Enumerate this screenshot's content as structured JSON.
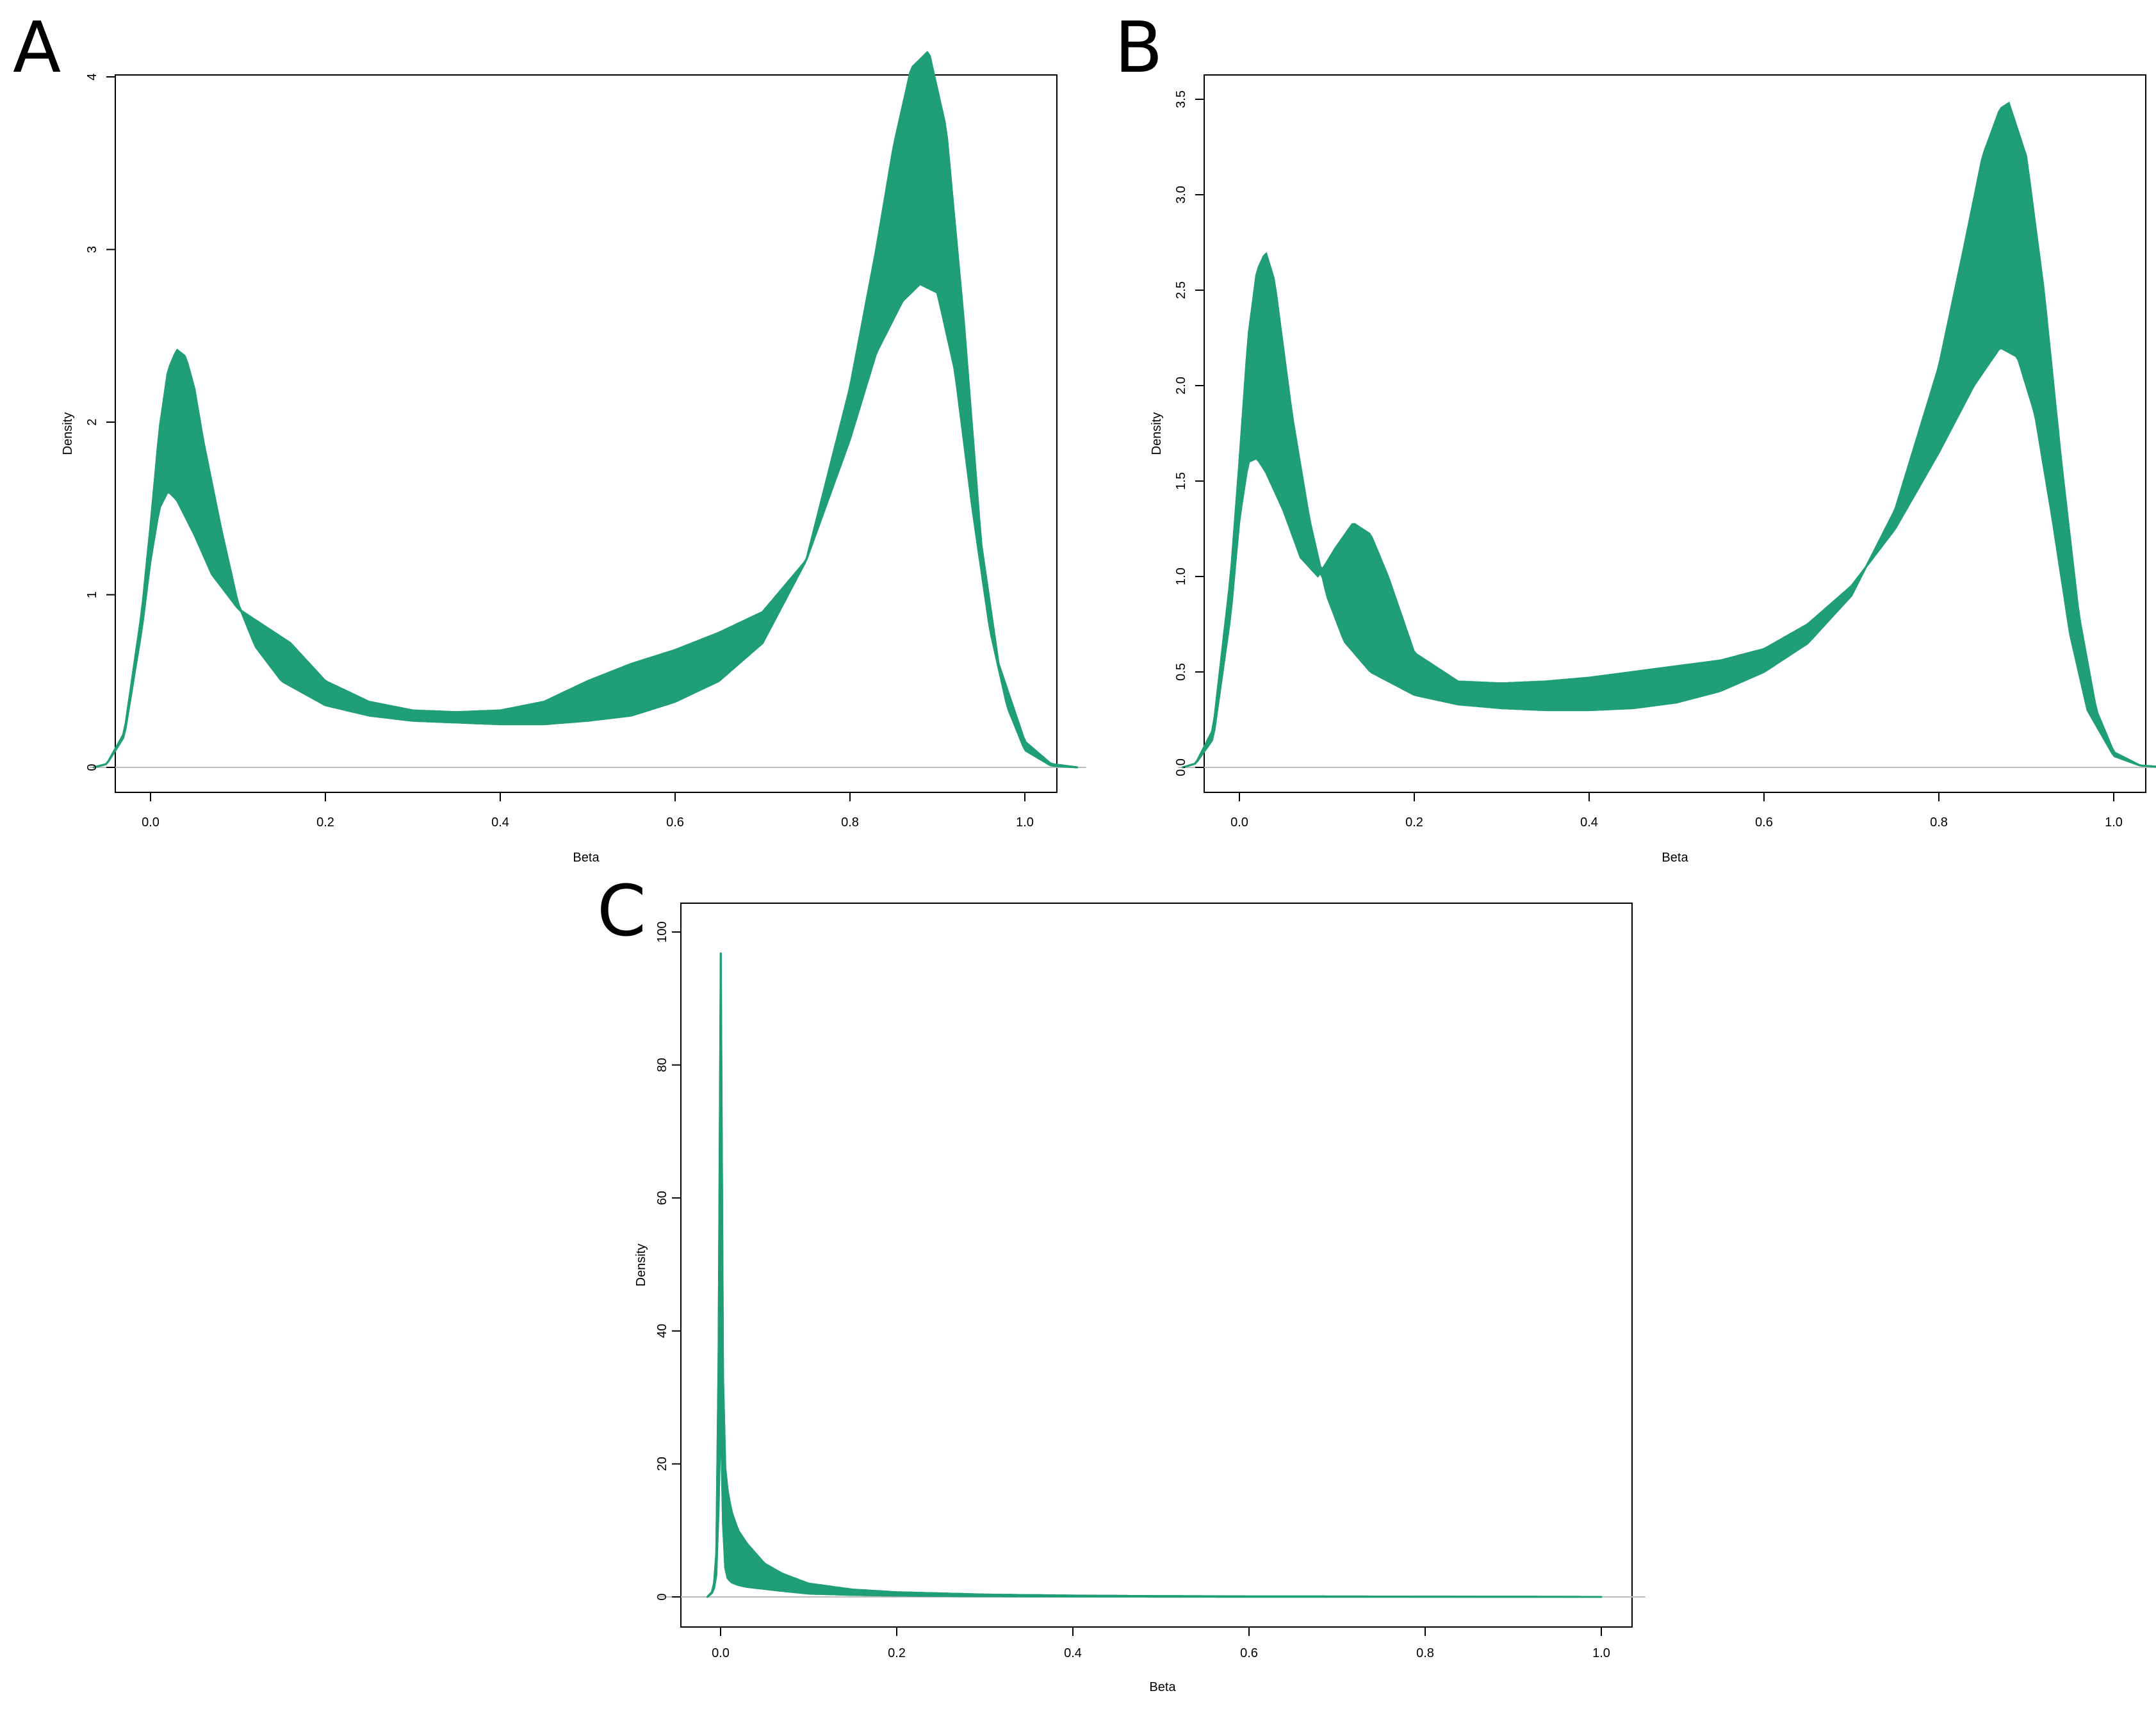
{
  "colors": {
    "density": "#1f9e77",
    "frame": "#000000",
    "baseline": "#bdbdbd"
  },
  "chart_data": [
    {
      "panel": "A",
      "type": "line",
      "xlabel": "Beta",
      "ylabel": "Density",
      "xlim": [
        -0.07,
        1.07
      ],
      "ylim": [
        0,
        4.3
      ],
      "xticks": [
        0.0,
        0.2,
        0.4,
        0.6,
        0.8,
        1.0
      ],
      "xtick_labels": [
        "0.0",
        "0.2",
        "0.4",
        "0.6",
        "0.8",
        "1.0"
      ],
      "yticks": [
        0,
        1,
        2,
        3,
        4
      ],
      "ytick_labels": [
        "0",
        "1",
        "2",
        "3",
        "4"
      ],
      "series": [
        {
          "x": [
            -0.065,
            -0.05,
            -0.03,
            -0.01,
            0.0,
            0.01,
            0.02,
            0.03,
            0.04,
            0.05,
            0.06,
            0.08,
            0.1,
            0.12,
            0.15,
            0.2,
            0.25,
            0.3,
            0.35,
            0.4,
            0.45,
            0.5,
            0.55,
            0.6,
            0.65,
            0.7,
            0.75,
            0.8,
            0.83,
            0.85,
            0.87,
            0.89,
            0.91,
            0.93,
            0.95,
            0.97,
            1.0,
            1.03,
            1.06
          ],
          "y": [
            0.0,
            0.02,
            0.2,
            0.9,
            1.4,
            1.95,
            2.3,
            2.42,
            2.38,
            2.2,
            1.9,
            1.4,
            0.95,
            0.7,
            0.5,
            0.36,
            0.3,
            0.27,
            0.26,
            0.25,
            0.25,
            0.27,
            0.3,
            0.38,
            0.5,
            0.72,
            1.2,
            2.2,
            3.0,
            3.6,
            4.05,
            4.15,
            3.7,
            2.6,
            1.3,
            0.6,
            0.15,
            0.02,
            0.0
          ]
        },
        {
          "x": [
            -0.065,
            -0.05,
            -0.03,
            -0.01,
            0.0,
            0.01,
            0.02,
            0.03,
            0.05,
            0.07,
            0.1,
            0.13,
            0.16,
            0.2,
            0.25,
            0.3,
            0.35,
            0.4,
            0.45,
            0.5,
            0.55,
            0.6,
            0.65,
            0.7,
            0.75,
            0.8,
            0.83,
            0.86,
            0.88,
            0.9,
            0.92,
            0.94,
            0.96,
            0.98,
            1.0,
            1.03,
            1.06
          ],
          "y": [
            0.0,
            0.02,
            0.18,
            0.8,
            1.2,
            1.5,
            1.6,
            1.55,
            1.35,
            1.12,
            0.92,
            0.82,
            0.72,
            0.5,
            0.38,
            0.33,
            0.32,
            0.33,
            0.38,
            0.5,
            0.6,
            0.68,
            0.78,
            0.9,
            1.2,
            1.9,
            2.4,
            2.7,
            2.8,
            2.75,
            2.3,
            1.5,
            0.8,
            0.35,
            0.1,
            0.01,
            0.0
          ]
        }
      ]
    },
    {
      "panel": "B",
      "type": "line",
      "xlabel": "Beta",
      "ylabel": "Density",
      "xlim": [
        -0.07,
        1.07
      ],
      "ylim": [
        0,
        3.5
      ],
      "xticks": [
        0.0,
        0.2,
        0.4,
        0.6,
        0.8,
        1.0
      ],
      "xtick_labels": [
        "0.0",
        "0.2",
        "0.4",
        "0.6",
        "0.8",
        "1.0"
      ],
      "yticks": [
        0.0,
        0.5,
        1.0,
        1.5,
        2.0,
        2.5,
        3.0,
        3.5
      ],
      "ytick_labels": [
        "0.0",
        "0.5",
        "1.0",
        "1.5",
        "2.0",
        "2.5",
        "3.0",
        "3.5"
      ],
      "series": [
        {
          "x": [
            -0.065,
            -0.05,
            -0.03,
            -0.01,
            0.0,
            0.01,
            0.02,
            0.03,
            0.04,
            0.05,
            0.06,
            0.08,
            0.1,
            0.12,
            0.15,
            0.2,
            0.25,
            0.3,
            0.35,
            0.4,
            0.45,
            0.5,
            0.55,
            0.6,
            0.65,
            0.7,
            0.75,
            0.8,
            0.83,
            0.85,
            0.87,
            0.88,
            0.9,
            0.92,
            0.94,
            0.96,
            0.98,
            1.0,
            1.03,
            1.06
          ],
          "y": [
            0.0,
            0.02,
            0.2,
            1.0,
            1.6,
            2.25,
            2.6,
            2.7,
            2.55,
            2.2,
            1.85,
            1.3,
            0.9,
            0.66,
            0.5,
            0.38,
            0.33,
            0.31,
            0.3,
            0.3,
            0.31,
            0.34,
            0.4,
            0.5,
            0.65,
            0.9,
            1.35,
            2.1,
            2.75,
            3.2,
            3.45,
            3.48,
            3.2,
            2.5,
            1.6,
            0.8,
            0.3,
            0.08,
            0.01,
            0.0
          ]
        },
        {
          "x": [
            -0.065,
            -0.05,
            -0.03,
            -0.01,
            0.0,
            0.01,
            0.02,
            0.03,
            0.05,
            0.07,
            0.09,
            0.11,
            0.13,
            0.15,
            0.17,
            0.2,
            0.25,
            0.3,
            0.35,
            0.4,
            0.45,
            0.5,
            0.55,
            0.6,
            0.65,
            0.7,
            0.75,
            0.8,
            0.84,
            0.87,
            0.89,
            0.91,
            0.93,
            0.95,
            0.97,
            1.0,
            1.03,
            1.06
          ],
          "y": [
            0.0,
            0.02,
            0.15,
            0.8,
            1.3,
            1.6,
            1.62,
            1.55,
            1.35,
            1.1,
            1.0,
            1.15,
            1.28,
            1.22,
            1.0,
            0.6,
            0.45,
            0.44,
            0.45,
            0.47,
            0.5,
            0.53,
            0.56,
            0.62,
            0.75,
            0.95,
            1.25,
            1.65,
            2.0,
            2.2,
            2.15,
            1.85,
            1.3,
            0.7,
            0.3,
            0.06,
            0.01,
            0.0
          ]
        }
      ]
    },
    {
      "panel": "C",
      "type": "line",
      "xlabel": "Beta",
      "ylabel": "Density",
      "xlim": [
        -0.07,
        1.05
      ],
      "ylim": [
        0,
        104
      ],
      "xticks": [
        0.0,
        0.2,
        0.4,
        0.6,
        0.8,
        1.0
      ],
      "xtick_labels": [
        "0.0",
        "0.2",
        "0.4",
        "0.6",
        "0.8",
        "1.0"
      ],
      "yticks": [
        0,
        20,
        40,
        60,
        80,
        100
      ],
      "ytick_labels": [
        "0",
        "20",
        "40",
        "60",
        "80",
        "100"
      ],
      "series": [
        {
          "x": [
            -0.015,
            -0.008,
            -0.004,
            -0.002,
            0.0,
            0.002,
            0.004,
            0.006,
            0.008,
            0.012,
            0.02,
            0.03,
            0.05,
            0.07,
            0.1,
            0.15,
            0.2,
            0.3,
            0.4,
            0.5,
            0.6,
            0.8,
            1.0
          ],
          "y": [
            0.0,
            1.0,
            8.0,
            40.0,
            104.0,
            40.0,
            22.0,
            18.0,
            16.0,
            13.0,
            10.0,
            8.0,
            5.0,
            3.5,
            2.0,
            1.1,
            0.7,
            0.35,
            0.2,
            0.12,
            0.08,
            0.04,
            0.0
          ]
        },
        {
          "x": [
            -0.015,
            -0.008,
            -0.004,
            -0.002,
            0.0,
            0.002,
            0.004,
            0.006,
            0.008,
            0.012,
            0.02,
            0.03,
            0.05,
            0.07,
            0.1,
            0.15,
            0.2,
            0.3,
            0.4,
            0.5,
            0.6,
            0.8,
            1.0
          ],
          "y": [
            0.0,
            0.8,
            4.0,
            15.0,
            30.0,
            14.0,
            6.0,
            3.5,
            2.8,
            2.2,
            1.8,
            1.5,
            1.2,
            0.9,
            0.5,
            0.3,
            0.2,
            0.1,
            0.06,
            0.04,
            0.03,
            0.02,
            0.0
          ]
        }
      ]
    }
  ]
}
